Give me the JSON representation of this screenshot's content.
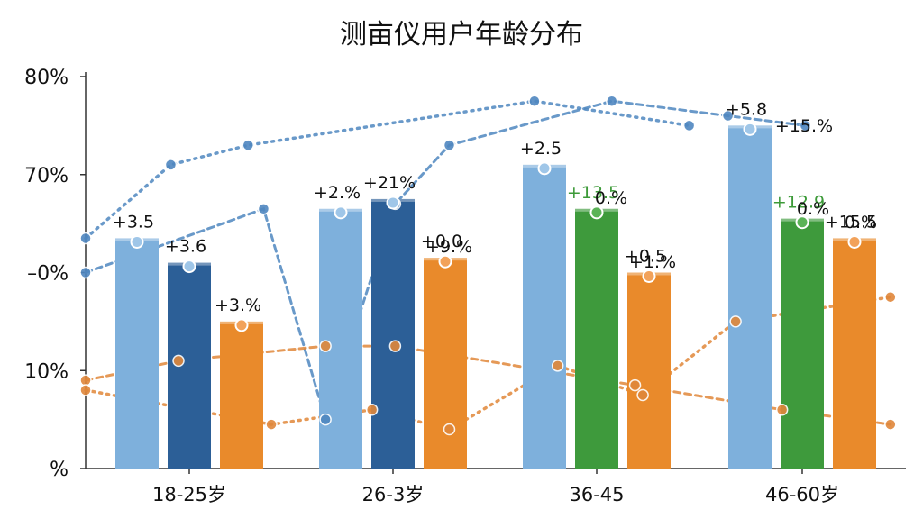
{
  "chart_data": {
    "type": "bar",
    "title": "测亩仪用户年龄分布",
    "categories": [
      "18-25岁",
      "26-3岁",
      "36-45",
      "46-60岁"
    ],
    "y_tick_labels": [
      "%",
      "10%",
      "–0%",
      "70%",
      "80%"
    ],
    "ylim": [
      0,
      80
    ],
    "grid": false,
    "colors": {
      "light_blue": "#7eb0dc",
      "dark_blue": "#2c5f97",
      "green": "#3e9a3c",
      "orange": "#e98a2b",
      "text_green": "#3c9a38",
      "line_blue": "#4f87c0",
      "line_orange": "#e0873a"
    },
    "bars": [
      {
        "category": "18-25岁",
        "color": "light_blue",
        "value": 47,
        "label": "+3.5"
      },
      {
        "category": "18-25岁",
        "color": "dark_blue",
        "value": 42,
        "label": "+3.6"
      },
      {
        "category": "18-25岁",
        "color": "orange",
        "value": 30,
        "label": "+3.%"
      },
      {
        "category": "26-3岁",
        "color": "light_blue",
        "value": 53,
        "label": "+2.%"
      },
      {
        "category": "26-3岁",
        "color": "dark_blue",
        "value": 55,
        "label": "+21%"
      },
      {
        "category": "26-3岁",
        "color": "orange",
        "value": 43,
        "label": "+0.0"
      },
      {
        "category": "36-45",
        "color": "light_blue",
        "value": 62,
        "label": "+2.5"
      },
      {
        "category": "36-45",
        "color": "green",
        "value": 53,
        "label": "+13.5"
      },
      {
        "category": "36-45",
        "color": "orange",
        "value": 40,
        "label": "+0.5"
      },
      {
        "category": "46-60岁",
        "color": "light_blue",
        "value": 70,
        "label": "+5.8"
      },
      {
        "category": "46-60岁",
        "color": "green",
        "value": 51,
        "label": "+12.9"
      },
      {
        "category": "46-60岁",
        "color": "orange",
        "value": 47,
        "label": "+15.5"
      }
    ],
    "extra_labels": [
      {
        "text": "+9.%",
        "color": "#111"
      },
      {
        "text": "+1.%",
        "color": "#111"
      },
      {
        "text": "0.%",
        "color": "#111"
      },
      {
        "text": "0.%",
        "color": "#111"
      },
      {
        "text": "0.%",
        "color": "#111"
      },
      {
        "text": "+15.%",
        "color": "#111"
      }
    ],
    "lines": [
      {
        "color": "line_blue",
        "style": "dashed",
        "points": [
          [
            0.0,
            40
          ],
          [
            1.15,
            53
          ],
          [
            1.55,
            10
          ],
          [
            2.0,
            54
          ],
          [
            2.35,
            66
          ],
          [
            3.4,
            75
          ],
          [
            4.15,
            72
          ],
          [
            4.65,
            70
          ]
        ]
      },
      {
        "color": "line_blue",
        "style": "dotted",
        "points": [
          [
            0.0,
            47
          ],
          [
            0.55,
            62
          ],
          [
            1.05,
            66
          ],
          [
            2.9,
            75
          ],
          [
            3.9,
            70
          ]
        ]
      },
      {
        "color": "line_orange",
        "style": "dashed",
        "points": [
          [
            0.0,
            18
          ],
          [
            0.6,
            22
          ],
          [
            1.55,
            25
          ],
          [
            2.0,
            25
          ],
          [
            3.55,
            17
          ],
          [
            4.5,
            12
          ],
          [
            5.2,
            9
          ]
        ]
      },
      {
        "color": "line_orange",
        "style": "dotted",
        "points": [
          [
            0.0,
            16
          ],
          [
            1.2,
            9
          ],
          [
            1.85,
            12
          ],
          [
            2.35,
            8
          ],
          [
            3.05,
            21
          ],
          [
            3.6,
            15
          ],
          [
            4.2,
            30
          ],
          [
            5.2,
            35
          ]
        ]
      }
    ]
  }
}
